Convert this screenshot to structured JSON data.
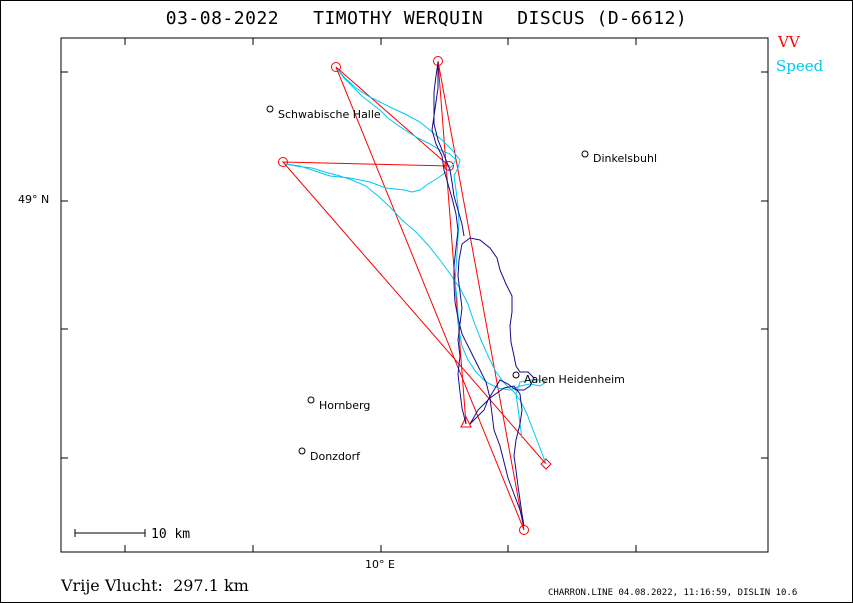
{
  "header": {
    "title": "03-08-2022   TIMOTHY WERQUIN   DISCUS (D-6612)"
  },
  "legend": {
    "vv_label": "VV",
    "vv_color": "#ff0000",
    "speed_label": "Speed",
    "speed_color": "#00c8f0",
    "track_color": "#1a0a8c"
  },
  "axes": {
    "lat_label": "49° N",
    "lon_label": "10° E"
  },
  "towns": [
    {
      "name": "Schwabische Halle"
    },
    {
      "name": "Dinkelsbuhl"
    },
    {
      "name": "Aalen Heidenheim"
    },
    {
      "name": "Hornberg"
    },
    {
      "name": "Donzdorf"
    }
  ],
  "scale": {
    "label": "10 km"
  },
  "summary": {
    "distance": "Vrije Vlucht:  297.1 km"
  },
  "footer": {
    "text": "CHARRON.LINE 04.08.2022, 11:16:59, DISLIN 10.6"
  }
}
